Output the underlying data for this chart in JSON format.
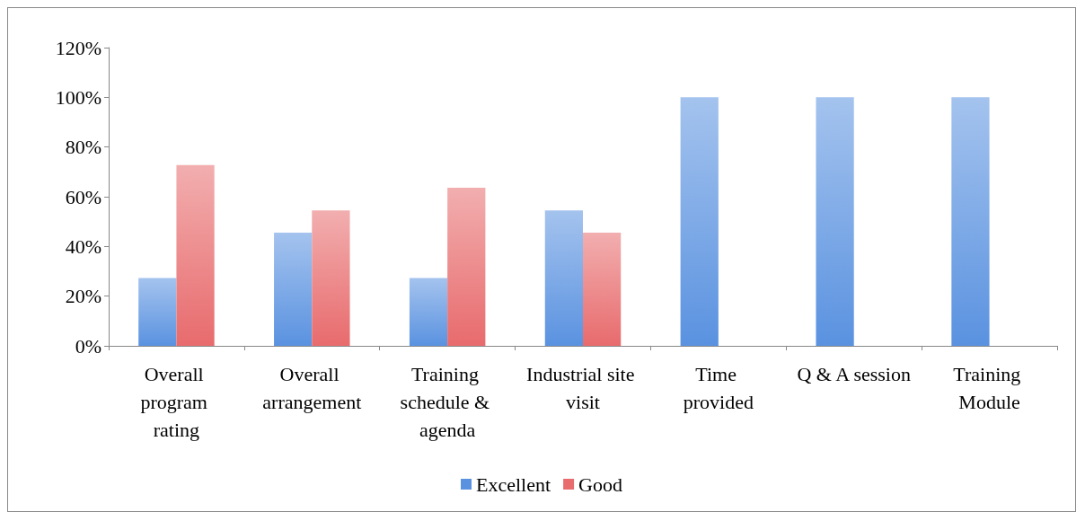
{
  "chart_data": {
    "type": "bar",
    "categories": [
      "Overall program rating",
      "Overall arrangement",
      "Training schedule & agenda",
      "Industrial site visit",
      "Time provided",
      "Q & A session",
      "Training Module"
    ],
    "series": [
      {
        "name": "Excellent",
        "color": "#5a92e0",
        "values": [
          27.3,
          45.5,
          27.3,
          54.5,
          100,
          100,
          100
        ]
      },
      {
        "name": "Good",
        "color": "#e86b6d",
        "values": [
          72.7,
          54.5,
          63.6,
          45.5,
          null,
          null,
          null
        ]
      }
    ],
    "ylim": [
      0,
      120
    ],
    "yticks": [
      {
        "value": 0,
        "label": "0%"
      },
      {
        "value": 20,
        "label": "20%"
      },
      {
        "value": 40,
        "label": "40%"
      },
      {
        "value": 60,
        "label": "60%"
      },
      {
        "value": 80,
        "label": "80%"
      },
      {
        "value": 100,
        "label": "100%"
      },
      {
        "value": 120,
        "label": "120%"
      }
    ],
    "grid": false,
    "legend": "bottom"
  }
}
